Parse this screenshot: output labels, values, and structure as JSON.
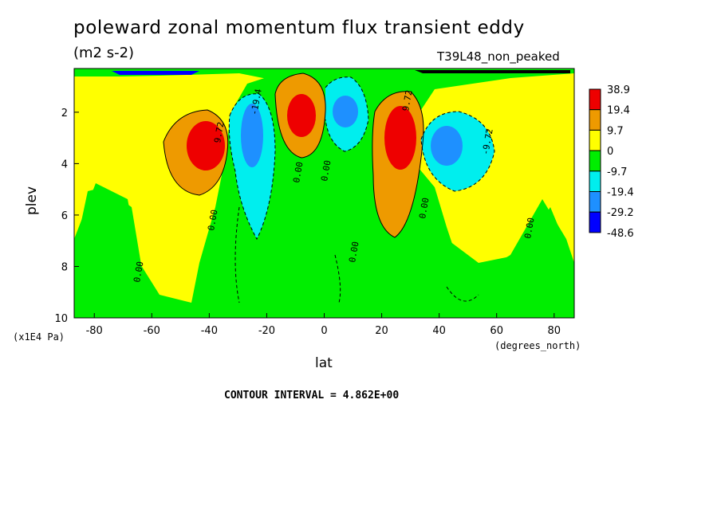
{
  "chart_data": {
    "type": "heatmap",
    "title": "poleward zonal momentum flux transient eddy",
    "units": "(m2 s-2)",
    "experiment": "T39L48_non_peaked",
    "xlabel": "lat",
    "xunits": "(degrees_north)",
    "ylabel": "plev",
    "yunits": "(x1E4 Pa)",
    "xlim": [
      -87,
      87
    ],
    "ylim": [
      10,
      0.3
    ],
    "x_ticks": [
      -80,
      -60,
      -40,
      -20,
      0,
      20,
      40,
      60,
      80
    ],
    "y_ticks": [
      2,
      4,
      6,
      8,
      10
    ],
    "contour_interval": "CONTOUR INTERVAL = 4.862E+00",
    "colorbar_levels": [
      "38.9",
      "19.4",
      "9.7",
      "0",
      "-9.7",
      "-19.4",
      "-29.2",
      "-48.6"
    ],
    "colors": {
      "red": "#ee0000",
      "orange": "#ee9a00",
      "yellow": "#ffff00",
      "green": "#00ee00",
      "cyan": "#00eeee",
      "mid_blue": "#1e90ff",
      "blue": "#0000ff"
    },
    "contour_labels": [
      "0.00",
      "9.72",
      "-9.72",
      "-19.4"
    ],
    "features": [
      {
        "lat": -42,
        "plev": 3.0,
        "value": 40,
        "sign": "positive"
      },
      {
        "lat": -26,
        "plev": 2.6,
        "value": -30,
        "sign": "negative"
      },
      {
        "lat": -8,
        "plev": 2.0,
        "value": 40,
        "sign": "positive"
      },
      {
        "lat": 8,
        "plev": 2.0,
        "value": -30,
        "sign": "negative"
      },
      {
        "lat": 27,
        "plev": 2.8,
        "value": 40,
        "sign": "positive"
      },
      {
        "lat": 44,
        "plev": 3.0,
        "value": -28,
        "sign": "negative"
      }
    ]
  }
}
